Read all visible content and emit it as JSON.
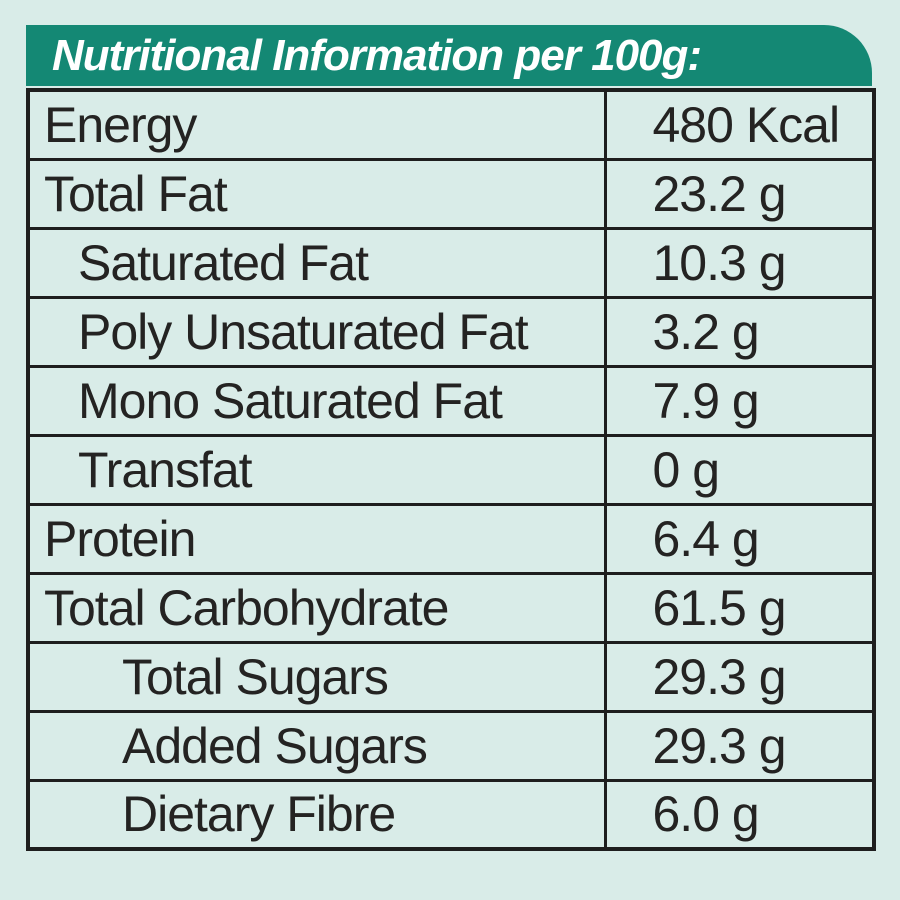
{
  "title": "Nutritional Information per 100g:",
  "colors": {
    "header_bg": "#148874",
    "page_bg": "#d9ece8",
    "border": "#1e1e1e",
    "text": "#242322",
    "header_text": "#ffffff"
  },
  "table": {
    "rows": [
      {
        "label": "Energy",
        "value": "480 Kcal",
        "indent": 0
      },
      {
        "label": "Total Fat",
        "value": "23.2 g",
        "indent": 0
      },
      {
        "label": "Saturated Fat",
        "value": "10.3 g",
        "indent": 1
      },
      {
        "label": "Poly Unsaturated Fat",
        "value": "3.2 g",
        "indent": 1
      },
      {
        "label": "Mono Saturated Fat",
        "value": "7.9 g",
        "indent": 1
      },
      {
        "label": "Transfat",
        "value": "0 g",
        "indent": 1
      },
      {
        "label": "Protein",
        "value": "6.4 g",
        "indent": 0
      },
      {
        "label": "Total Carbohydrate",
        "value": "61.5 g",
        "indent": 0
      },
      {
        "label": "Total Sugars",
        "value": "29.3 g",
        "indent": 2
      },
      {
        "label": "Added Sugars",
        "value": "29.3 g",
        "indent": 2
      },
      {
        "label": "Dietary Fibre",
        "value": "6.0 g",
        "indent": 2
      }
    ]
  }
}
